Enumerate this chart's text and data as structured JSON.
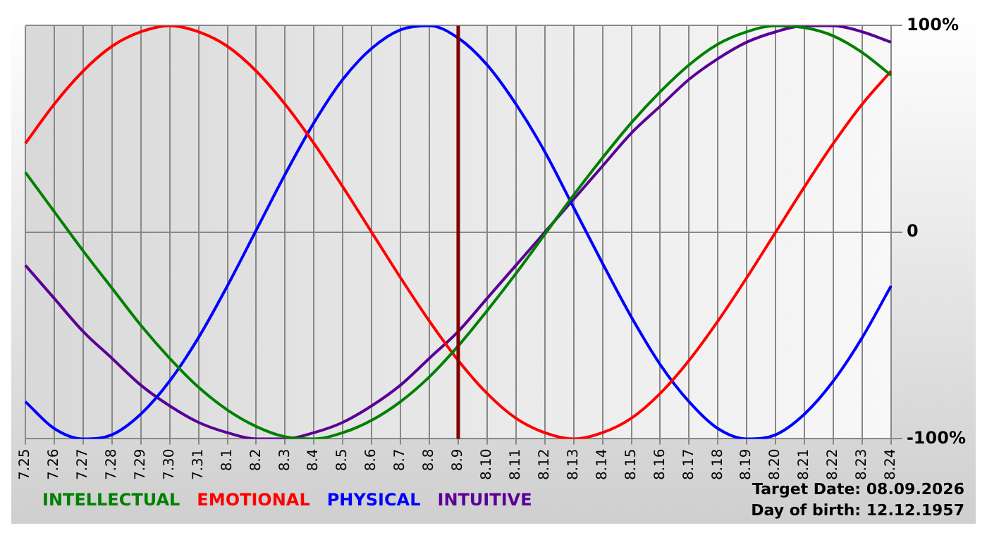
{
  "chart_data": {
    "type": "line",
    "categories": [
      "7.25",
      "7.26",
      "7.27",
      "7.28",
      "7.29",
      "7.30",
      "7.31",
      "8.1",
      "8.2",
      "8.3",
      "8.4",
      "8.5",
      "8.6",
      "8.7",
      "8.8",
      "8.9",
      "8.10",
      "8.11",
      "8.12",
      "8.13",
      "8.14",
      "8.15",
      "8.16",
      "8.17",
      "8.18",
      "8.19",
      "8.20",
      "8.21",
      "8.22",
      "8.23",
      "8.24"
    ],
    "series": [
      {
        "name": "INTELLECTUAL",
        "color": "#008000",
        "values": [
          29,
          10,
          -9,
          -27,
          -45,
          -61,
          -75,
          -86,
          -94,
          -99,
          -100,
          -97,
          -91,
          -82,
          -70,
          -55,
          -38,
          -20,
          -1,
          18,
          36,
          53,
          68,
          81,
          91,
          97,
          100,
          99,
          95,
          87,
          76
        ]
      },
      {
        "name": "EMOTIONAL",
        "color": "#ff0000",
        "values": [
          43,
          62,
          78,
          90,
          97,
          100,
          97,
          90,
          78,
          62,
          43,
          22,
          0,
          -22,
          -43,
          -62,
          -78,
          -90,
          -97,
          -100,
          -97,
          -90,
          -78,
          -62,
          -43,
          -22,
          0,
          22,
          43,
          62,
          78
        ]
      },
      {
        "name": "PHYSICAL",
        "color": "#0000ff",
        "values": [
          -82,
          -95,
          -100,
          -98,
          -88,
          -72,
          -51,
          -26,
          1,
          28,
          53,
          74,
          89,
          98,
          100,
          94,
          81,
          62,
          39,
          12,
          -15,
          -41,
          -64,
          -82,
          -95,
          -100,
          -98,
          -88,
          -72,
          -51,
          -26
        ]
      },
      {
        "name": "INTUITIVE",
        "color": "#5a0096",
        "values": [
          -16,
          -32,
          -48,
          -61,
          -74,
          -84,
          -92,
          -97,
          -100,
          -100,
          -97,
          -92,
          -84,
          -74,
          -61,
          -48,
          -32,
          -16,
          0,
          16,
          32,
          48,
          61,
          74,
          84,
          92,
          97,
          100,
          100,
          97,
          92
        ]
      }
    ],
    "ylim": [
      -100,
      100
    ],
    "yticks": [
      {
        "value": -100,
        "label": "-100%"
      },
      0,
      {
        "value": 100,
        "label": "100%"
      }
    ],
    "ref_lines": [
      {
        "axis": "x",
        "value": "8.9",
        "color": "#800000"
      }
    ],
    "annotations": [
      "Target Date: 08.09.2026",
      "Day of birth: 12.12.1957"
    ],
    "grid": true,
    "legend": "bottom left",
    "marker": "none",
    "line_style": "solid"
  }
}
